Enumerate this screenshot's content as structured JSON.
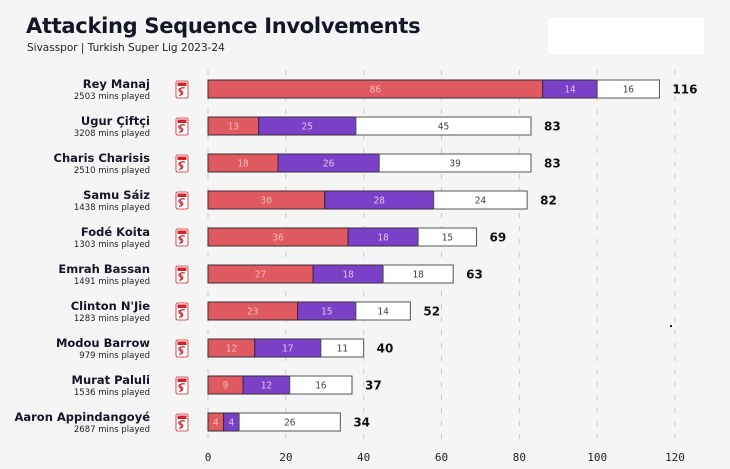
{
  "header": {
    "title": "Attacking Sequence Involvements",
    "subtitle": "Sivasspor | Turkish Super Lig 2023-24"
  },
  "colors": {
    "segment_1": "#e05a62",
    "segment_2": "#7b40c8",
    "segment_3": "#ffffff",
    "bar_border": "#3a2a3a",
    "segment_3_border": "#555555",
    "segment_1_label": "#f6b8bc",
    "segment_2_label": "#d9c4f5",
    "segment_3_label": "#444444",
    "grid": "#c8c8c8",
    "background": "#f5f5f5",
    "club_badge": "#d2232a"
  },
  "chart_data": {
    "type": "bar",
    "orientation": "horizontal",
    "stacked": true,
    "title": "Attacking Sequence Involvements",
    "subtitle": "Sivasspor | Turkish Super Lig 2023-24",
    "xlabel": "",
    "ylabel": "",
    "xlim": [
      0,
      120
    ],
    "x_ticks": [
      0,
      20,
      40,
      60,
      80,
      100,
      120
    ],
    "grid": "vertical dashed",
    "club_icon": "sivasspor-badge-icon",
    "categories": [
      "Rey Manaj",
      "Ugur Çiftçi",
      "Charis Charisis",
      "Samu Sáiz",
      "Fodé Koita",
      "Emrah Bassan",
      "Clinton N'Jie",
      "Modou Barrow",
      "Murat Paluli",
      "Aaron Appindangoyé"
    ],
    "minutes_labels": [
      "2503 mins played",
      "3208 mins played",
      "2510 mins played",
      "1438 mins played",
      "1303 mins played",
      "1491 mins played",
      "1283 mins played",
      "979 mins played",
      "1536 mins played",
      "2687 mins played"
    ],
    "series": [
      {
        "name": "segment_1",
        "color": "#e05a62",
        "values": [
          86,
          13,
          18,
          30,
          36,
          27,
          23,
          12,
          9,
          4
        ]
      },
      {
        "name": "segment_2",
        "color": "#7b40c8",
        "values": [
          14,
          25,
          26,
          28,
          18,
          18,
          15,
          17,
          12,
          4
        ]
      },
      {
        "name": "segment_3",
        "color": "#ffffff",
        "values": [
          16,
          45,
          39,
          24,
          15,
          18,
          14,
          11,
          16,
          26
        ]
      }
    ],
    "totals": [
      116,
      83,
      83,
      82,
      69,
      63,
      52,
      40,
      37,
      34
    ]
  }
}
